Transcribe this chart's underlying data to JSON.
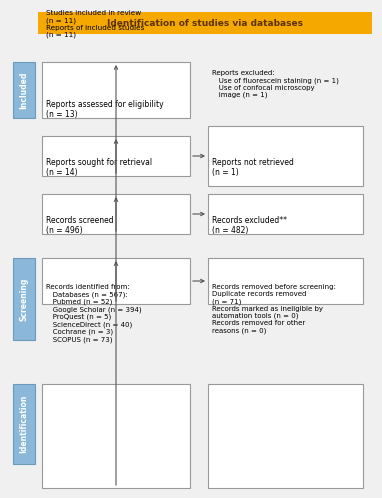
{
  "title": "Identification of studies via databases",
  "title_bg": "#F5A800",
  "title_text_color": "#5C3300",
  "box_edge_color": "#999999",
  "box_fill": "#FFFFFF",
  "sidebar_fill": "#8BB8D8",
  "sidebar_edge_color": "#6A9BBB",
  "arrow_color": "#555555",
  "bg_color": "#F0F0F0",
  "left_box0": "Records identified from:\n   Databases (n = 567):\n   Pubmed (n = 52)\n   Google Scholar (n = 394)\n   ProQuest (n = 5)\n   ScienceDirect (n = 40)\n   Cochrane (n = 3)\n   SCOPUS (n = 73)",
  "left_box1": "Records screened\n(n = 496)",
  "left_box2": "Reports sought for retrieval\n(n = 14)",
  "left_box3": "Reports assessed for eligibility\n(n = 13)",
  "left_box4": "Studies included in review\n(n = 11)\nReports of included studies\n(n = 11)",
  "right_box0_bold": "Records removed ",
  "right_box0_bold_italic": "before screening:",
  "right_box0_rest": "\nDuplicate records removed\n(n = 71)\nRecords marked as ineligible by\nautomation tools (n = 0)\nRecords removed for other\nreasons (n = 0)",
  "right_box0": "Records removed before screening:\nDuplicate records removed\n(n = 71)\nRecords marked as ineligible by\nautomation tools (n = 0)\nRecords removed for other\nreasons (n = 0)",
  "right_box1": "Records excluded**\n(n = 482)",
  "right_box2": "Reports not retrieved\n(n = 1)",
  "right_box3": "Reports excluded:\n   Use of fluorescein staining (n = 1)\n   Use of confocal microscopy\n   image (n = 1)",
  "label_identification": "Identification",
  "label_screening": "Screening",
  "label_included": "Included"
}
